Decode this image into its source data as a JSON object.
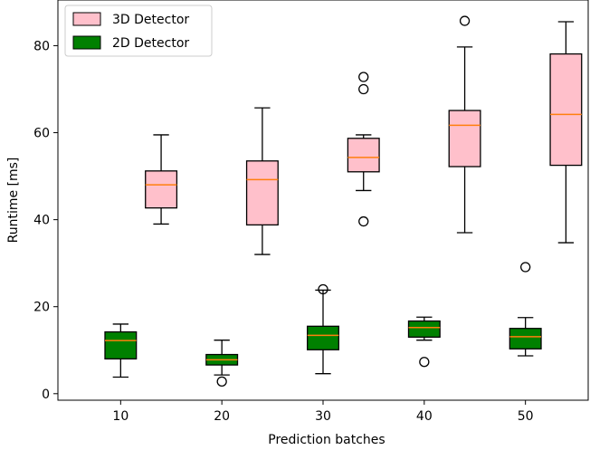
{
  "chart_data": {
    "type": "boxplot",
    "title": "",
    "xlabel": "Prediction batches",
    "ylabel": "Runtime [ms]",
    "categories": [
      "10",
      "20",
      "30",
      "40",
      "50"
    ],
    "xticks": [
      10,
      20,
      30,
      40,
      50
    ],
    "xlim": [
      3.8,
      56.2
    ],
    "ylim": [
      -1.5,
      90.5
    ],
    "yticks": [
      0,
      20,
      40,
      60,
      80
    ],
    "grid": false,
    "legend_position": "top-left",
    "median_color": "#ff7f0e",
    "series": [
      {
        "name": "3D Detector",
        "color": "#ffc0cb",
        "offset": 4,
        "boxes": [
          {
            "x": 10,
            "whisker_low": 39.0,
            "q1": 42.7,
            "median": 48.0,
            "q3": 51.2,
            "whisker_high": 59.5,
            "fliers": []
          },
          {
            "x": 20,
            "whisker_low": 32.0,
            "q1": 38.8,
            "median": 49.2,
            "q3": 53.5,
            "whisker_high": 65.7,
            "fliers": []
          },
          {
            "x": 30,
            "whisker_low": 46.7,
            "q1": 51.0,
            "median": 54.3,
            "q3": 58.7,
            "whisker_high": 59.5,
            "fliers": [
              72.8,
              70.0,
              39.6
            ]
          },
          {
            "x": 40,
            "whisker_low": 37.0,
            "q1": 52.2,
            "median": 61.7,
            "q3": 65.1,
            "whisker_high": 79.7,
            "fliers": [
              85.7
            ]
          },
          {
            "x": 50,
            "whisker_low": 34.7,
            "q1": 52.5,
            "median": 64.2,
            "q3": 78.1,
            "whisker_high": 85.5,
            "fliers": []
          }
        ]
      },
      {
        "name": "2D Detector",
        "color": "#008000",
        "offset": 0,
        "boxes": [
          {
            "x": 10,
            "whisker_low": 3.8,
            "q1": 8.0,
            "median": 12.2,
            "q3": 14.2,
            "whisker_high": 16.0,
            "fliers": []
          },
          {
            "x": 20,
            "whisker_low": 4.3,
            "q1": 6.6,
            "median": 7.8,
            "q3": 9.0,
            "whisker_high": 12.3,
            "fliers": [
              2.8
            ]
          },
          {
            "x": 30,
            "whisker_low": 4.6,
            "q1": 10.1,
            "median": 13.4,
            "q3": 15.5,
            "whisker_high": 23.8,
            "fliers": [
              24.0
            ]
          },
          {
            "x": 40,
            "whisker_low": 12.3,
            "q1": 13.0,
            "median": 15.2,
            "q3": 16.7,
            "whisker_high": 17.6,
            "fliers": [
              7.3
            ]
          },
          {
            "x": 50,
            "whisker_low": 8.7,
            "q1": 10.3,
            "median": 13.1,
            "q3": 15.0,
            "whisker_high": 17.5,
            "fliers": [
              29.1
            ]
          }
        ]
      }
    ]
  }
}
